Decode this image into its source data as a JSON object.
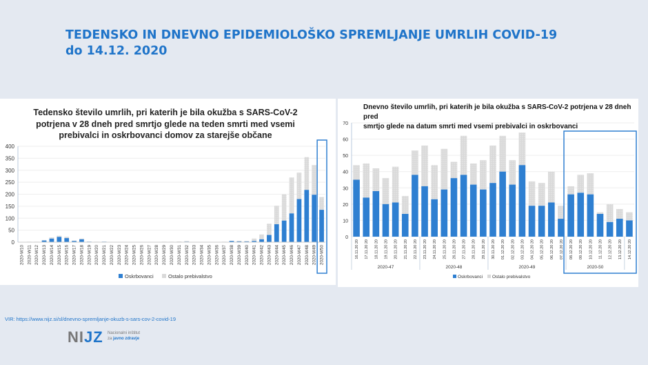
{
  "page": {
    "title_line1": "TEDENSKO IN DNEVNO EPIDEMIOLOŠKO SPREMLJANJE UMRLIH COVID-19",
    "title_line2": "do 14.12. 2020",
    "source": "VIR: https://www.nijz.si/sl/dnevno-spremljanje-okuzb-s-sars-cov-2-covid-19",
    "logo": {
      "text": "NIJZ",
      "sub1": "Nacionalni inštitut",
      "sub2_plain": "za",
      "sub2_bold": "javno zdravje"
    }
  },
  "colors": {
    "oskrbovanci": "#2e7fd1",
    "ostalo": "#d9d9d9",
    "highlight": "#2e7fd1",
    "title": "#1f74c9"
  },
  "chart_data": [
    {
      "type": "bar",
      "stacked": true,
      "title": "Tedensko število umrlih, pri katerih je bila okužba s SARS-CoV-2 potrjena v 28 dneh pred smrtjo glede na teden smrti med vsemi prebivalci in oskrbovanci domov za starejše občane",
      "title_lines": [
        "Tedensko število umrlih, pri katerih je bila okužba s SARS-CoV-2",
        "potrjena v 28 dneh pred smrtjo glede na teden smrti med vsemi",
        "prebivalci in oskrbovanci domov za starejše občane"
      ],
      "categories": [
        "2020-W10",
        "2020-W11",
        "2020-W12",
        "2020-W13",
        "2020-W14",
        "2020-W15",
        "2020-W16",
        "2020-W17",
        "2020-W18",
        "2020-W19",
        "2020-W20",
        "2020-W21",
        "2020-W22",
        "2020-W23",
        "2020-W24",
        "2020-W25",
        "2020-W26",
        "2020-W27",
        "2020-W28",
        "2020-W29",
        "2020-W30",
        "2020-W31",
        "2020-W32",
        "2020-W33",
        "2020-W34",
        "2020-W35",
        "2020-W36",
        "2020-W37",
        "2020-W38",
        "2020-W39",
        "2020-W40",
        "2020-W41",
        "2020-W42",
        "2020-W43",
        "2020-W44",
        "2020-W45",
        "2020-W46",
        "2020-W47",
        "2020-W48",
        "2020-W49",
        "2020-W50"
      ],
      "series": [
        {
          "name": "Oskrbovanci",
          "values": [
            0,
            1,
            1,
            7,
            15,
            22,
            17,
            5,
            12,
            2,
            1,
            2,
            0,
            0,
            0,
            0,
            0,
            0,
            0,
            1,
            1,
            1,
            2,
            0,
            0,
            0,
            0,
            1,
            5,
            3,
            3,
            5,
            12,
            30,
            75,
            90,
            120,
            180,
            218,
            198,
            135
          ]
        },
        {
          "name": "Ostalo prebivalstvo",
          "values": [
            1,
            1,
            1,
            2,
            5,
            5,
            5,
            2,
            3,
            1,
            1,
            1,
            0,
            0,
            0,
            0,
            0,
            0,
            0,
            1,
            1,
            2,
            3,
            1,
            1,
            1,
            1,
            1,
            1,
            3,
            2,
            10,
            20,
            47,
            77,
            110,
            150,
            110,
            137,
            124,
            53
          ]
        }
      ],
      "yticks": [
        0,
        50,
        100,
        150,
        200,
        250,
        300,
        350,
        400
      ],
      "ylim": [
        0,
        400
      ],
      "grid": true,
      "legend": "bottom",
      "highlighted_category": "2020-W50"
    },
    {
      "type": "bar",
      "stacked": true,
      "title_lines": [
        "Dnevno število umrlih, pri katerih je bila okužba s SARS-CoV-2 potrjena v 28 dneh pred",
        "smrtjo glede na datum smrti med vsemi prebivalci in oskrbovanci"
      ],
      "categories": [
        "16.11.2020",
        "17.11.2020",
        "18.11.2020",
        "19.11.2020",
        "20.11.2020",
        "21.11.2020",
        "22.11.2020",
        "23.11.2020",
        "24.11.2020",
        "25.11.2020",
        "26.11.2020",
        "27.11.2020",
        "28.11.2020",
        "29.11.2020",
        "30.11.2020",
        "01.12.2020",
        "02.12.2020",
        "03.12.2020",
        "04.12.2020",
        "05.12.2020",
        "06.12.2020",
        "07.12.2020",
        "08.12.2020",
        "09.12.2020",
        "10.12.2020",
        "11.12.2020",
        "12.12.2020",
        "13.12.2020",
        "14.12.2020"
      ],
      "groups": [
        {
          "label": "2020-47",
          "count": 7
        },
        {
          "label": "2020-48",
          "count": 7
        },
        {
          "label": "2020-49",
          "count": 8
        },
        {
          "label": "2020-50",
          "count": 6
        },
        {
          "label": "",
          "count": 1
        }
      ],
      "series": [
        {
          "name": "Oskrbovanci",
          "values": [
            35,
            24,
            28,
            20,
            21,
            14,
            38,
            31,
            23,
            29,
            36,
            38,
            32,
            29,
            33,
            40,
            32,
            44,
            19,
            19,
            21,
            11,
            26,
            27,
            26,
            14,
            9,
            11,
            10
          ]
        },
        {
          "name": "Ostalo prebivalstvo",
          "values": [
            9,
            21,
            14,
            16,
            22,
            11,
            15,
            25,
            21,
            25,
            10,
            24,
            13,
            18,
            23,
            22,
            15,
            20,
            15,
            14,
            19,
            8,
            5,
            11,
            13,
            1,
            11,
            6,
            5
          ]
        }
      ],
      "yticks": [
        0,
        10,
        20,
        30,
        40,
        50,
        60,
        70
      ],
      "ylim": [
        0,
        70
      ],
      "grid": true,
      "legend": "bottom",
      "highlighted_range": [
        "08.12.2020",
        "14.12.2020"
      ]
    }
  ]
}
